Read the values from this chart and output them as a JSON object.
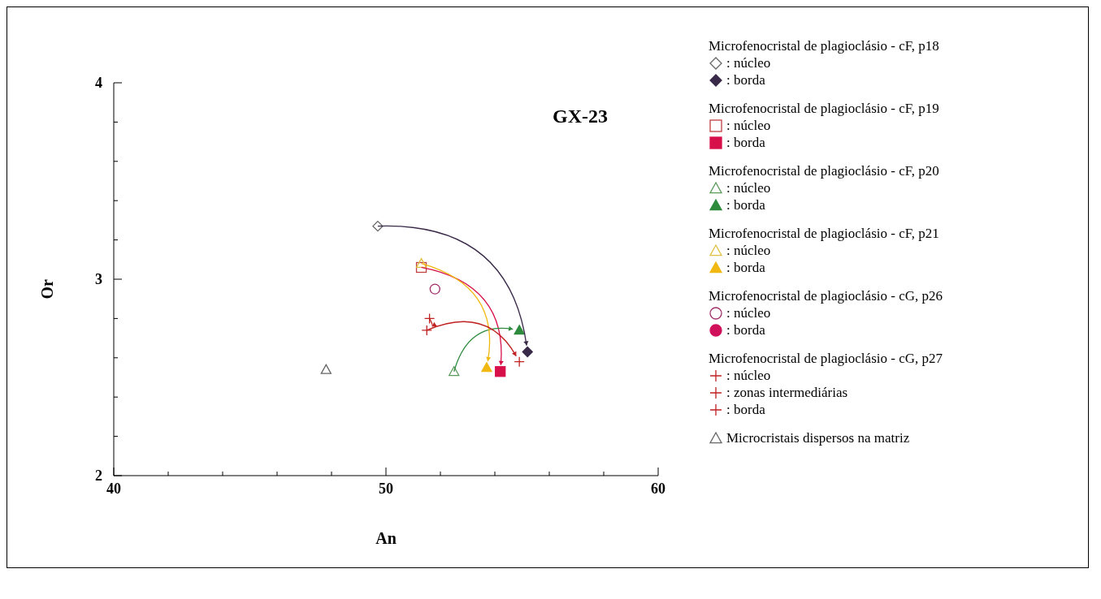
{
  "chart_data": {
    "type": "scatter",
    "title": "GX-23",
    "xlabel": "An",
    "ylabel": "Or",
    "xlim": [
      40,
      60
    ],
    "ylim": [
      2,
      4
    ],
    "xticks": [
      40,
      {
        "value": 42,
        "label": null
      },
      {
        "value": 44,
        "label": null
      },
      {
        "value": 46,
        "label": null
      },
      {
        "value": 48,
        "label": null
      },
      50,
      {
        "value": 52,
        "label": null
      },
      {
        "value": 54,
        "label": null
      },
      {
        "value": 56,
        "label": null
      },
      {
        "value": 58,
        "label": null
      },
      60
    ],
    "yticks": [
      2,
      {
        "value": 2.2,
        "label": null
      },
      {
        "value": 2.4,
        "label": null
      },
      {
        "value": 2.6,
        "label": null
      },
      {
        "value": 2.8,
        "label": null
      },
      3,
      {
        "value": 3.2,
        "label": null
      },
      {
        "value": 3.4,
        "label": null
      },
      {
        "value": 3.6,
        "label": null
      },
      {
        "value": 3.8,
        "label": null
      },
      4
    ],
    "grid": false,
    "legend": "right",
    "annotations": [
      "Microfenocristal de plagioclásio - cF, p18",
      "Microfenocristal de plagioclásio - cF, p19",
      "Microfenocristal de plagioclásio - cF, p20",
      "Microfenocristal de plagioclásio - cF, p21",
      "Microfenocristal de plagioclásio - cG, p26",
      "Microfenocristal de plagioclásio - cG, p27"
    ],
    "series": [
      {
        "name": ": núcleo",
        "color": "#666666",
        "marker": "diamond",
        "x": [
          49.7
        ],
        "values": [
          3.27
        ]
      },
      {
        "name": ": borda",
        "color": "#3a2a4a",
        "marker": "diamond",
        "x": [
          55.2
        ],
        "values": [
          2.63
        ]
      },
      {
        "name": ": núcleo",
        "color": "#c04040",
        "marker": "square",
        "x": [
          51.3
        ],
        "values": [
          3.06
        ]
      },
      {
        "name": ": borda",
        "color": "#d8104a",
        "marker": "square",
        "x": [
          54.2
        ],
        "values": [
          2.53
        ]
      },
      {
        "name": ": núcleo",
        "color": "#5a9a5a",
        "marker": "triangle",
        "x": [
          52.5
        ],
        "values": [
          2.53
        ]
      },
      {
        "name": ": borda",
        "color": "#2e8b3e",
        "marker": "triangle",
        "x": [
          54.9
        ],
        "values": [
          2.74
        ]
      },
      {
        "name": ": núcleo",
        "color": "#e0c040",
        "marker": "triangle",
        "x": [
          51.3
        ],
        "values": [
          3.08
        ]
      },
      {
        "name": ": borda",
        "color": "#f0b810",
        "marker": "triangle",
        "x": [
          53.7
        ],
        "values": [
          2.55
        ]
      },
      {
        "name": ": núcleo",
        "color": "#a0306a",
        "marker": "circle",
        "x": [
          51.8
        ],
        "values": [
          2.95
        ]
      },
      {
        "name": ": borda",
        "color": "#d0105a",
        "marker": "circle",
        "x": [
          null
        ],
        "values": [
          null
        ]
      },
      {
        "name": ": núcleo",
        "color": "#c02020",
        "marker": "cross",
        "x": [
          51.6
        ],
        "values": [
          2.8
        ]
      },
      {
        "name": ": zonas intermediárias",
        "color": "#c02020",
        "marker": "cross",
        "x": [
          51.5
        ],
        "values": [
          2.74
        ]
      },
      {
        "name": ": borda",
        "color": "#c02020",
        "marker": "cross",
        "x": [
          54.9
        ],
        "values": [
          2.58
        ]
      },
      {
        "name": "Microcristais dispersos na matriz",
        "color": "#666666",
        "marker": "triangle",
        "x": [
          47.8
        ],
        "values": [
          2.54
        ]
      }
    ]
  }
}
